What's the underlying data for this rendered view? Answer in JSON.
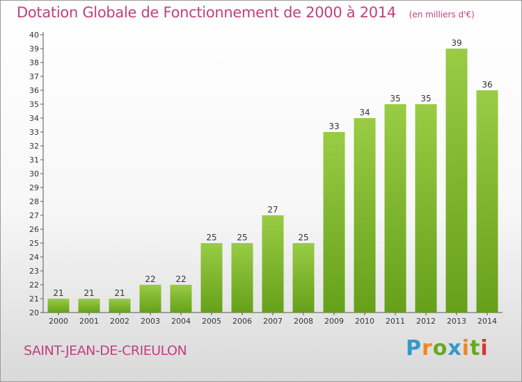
{
  "chart_data": {
    "type": "bar",
    "title": "Dotation Globale de Fonctionnement de 2000 à 2014",
    "subtitle": "(en milliers d'€)",
    "categories": [
      "2000",
      "2001",
      "2002",
      "2003",
      "2004",
      "2005",
      "2006",
      "2007",
      "2008",
      "2009",
      "2010",
      "2011",
      "2012",
      "2013",
      "2014"
    ],
    "values": [
      21,
      21,
      21,
      22,
      22,
      25,
      25,
      27,
      25,
      33,
      34,
      35,
      35,
      39,
      36
    ],
    "ylim": [
      20,
      40
    ],
    "yticks": [
      20,
      21,
      22,
      23,
      24,
      25,
      26,
      27,
      28,
      29,
      30,
      31,
      32,
      33,
      34,
      35,
      36,
      37,
      38,
      39,
      40
    ],
    "grid": false,
    "bar_color_top": "#99cc44",
    "bar_color_bottom": "#66a01a"
  },
  "commune": "SAINT-JEAN-DE-CRIEULON",
  "logo": {
    "letters": [
      "P",
      "r",
      "o",
      "x",
      "i",
      "t",
      "i"
    ],
    "colors": [
      "#3399cc",
      "#ee8822",
      "#66aa22",
      "#3399cc",
      "#ee8822",
      "#66aa22",
      "#dd3333"
    ]
  },
  "title_color": "#c0407f"
}
